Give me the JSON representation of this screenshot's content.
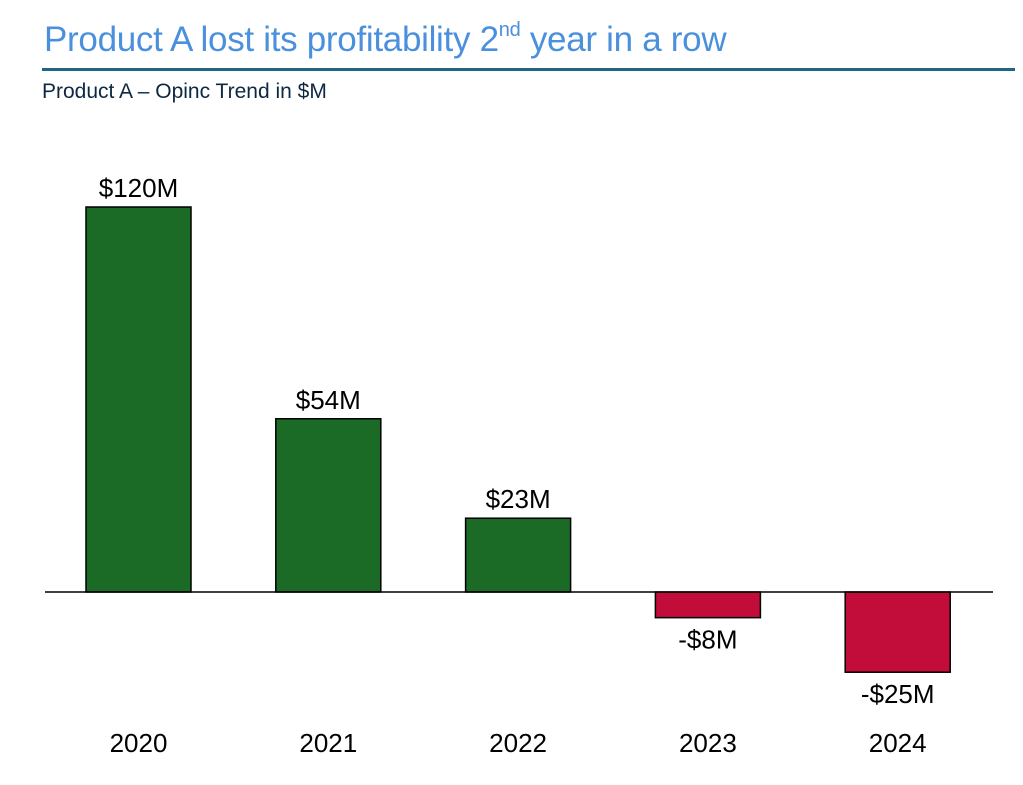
{
  "title": {
    "main": "Product A lost its profitability 2",
    "sup": "nd",
    "rest": " year in a row"
  },
  "subtitle": "Product A – Opinc Trend in $M",
  "colors": {
    "positive": "#1b6b27",
    "negative": "#c20d3b",
    "title": "#4a90dc",
    "rule": "#1f6587"
  },
  "chart_data": {
    "type": "bar",
    "title": "Product A – Opinc Trend in $M",
    "categories": [
      "2020",
      "2021",
      "2022",
      "2023",
      "2024"
    ],
    "values": [
      120,
      54,
      23,
      -8,
      -25
    ],
    "data_labels": [
      "$120M",
      "$54M",
      "$23M",
      "-$8M",
      "-$25M"
    ],
    "xlabel": "",
    "ylabel": "",
    "grid": false,
    "legend": "none"
  }
}
